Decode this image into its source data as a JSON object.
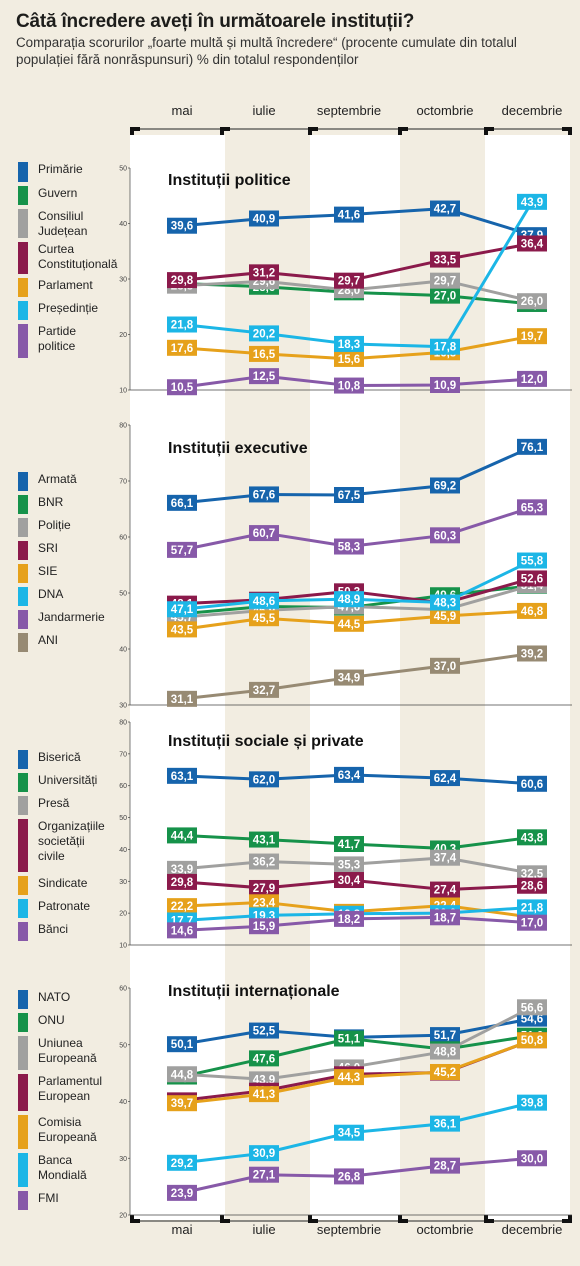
{
  "header": {
    "title": "Câtă încredere aveți în următoarele instituții?",
    "subtitle": "Comparația scorurilor „foarte multă și multă încredere“ (procente cumulate din totalul populației fără nonrăspunsuri)  % din totalul respondenților"
  },
  "colors": {
    "blue": "#1664ac",
    "green": "#16924a",
    "gray": "#a0a09f",
    "maroon": "#8b1a4b",
    "orange": "#e6a11b",
    "cyan": "#1cb6e6",
    "purple": "#8759a8",
    "taupe": "#978a73"
  },
  "chart_data": [
    {
      "type": "line",
      "title": "Instituții politice",
      "categories": [
        "mai",
        "iulie",
        "septembrie",
        "octombrie",
        "decembrie"
      ],
      "ylim": [
        10,
        50
      ],
      "yticks": [
        10,
        20,
        30,
        40,
        50
      ],
      "series": [
        {
          "name": "Primărie",
          "color": "#1664ac",
          "values": [
            39.6,
            40.9,
            41.6,
            42.7,
            37.9
          ]
        },
        {
          "name": "Guvern",
          "color": "#16924a",
          "values": [
            29.2,
            28.6,
            27.6,
            27.0,
            25.5
          ]
        },
        {
          "name": "Consiliul Județean",
          "color": "#a0a09f",
          "values": [
            28.8,
            29.6,
            28.0,
            29.7,
            26.0
          ]
        },
        {
          "name": "Curtea Constituțională",
          "color": "#8b1a4b",
          "values": [
            29.8,
            31.2,
            29.7,
            33.5,
            36.4
          ]
        },
        {
          "name": "Parlament",
          "color": "#e6a11b",
          "values": [
            17.6,
            16.5,
            15.6,
            16.8,
            19.7
          ]
        },
        {
          "name": "Președinție",
          "color": "#1cb6e6",
          "values": [
            21.8,
            20.2,
            18.3,
            17.8,
            43.9
          ]
        },
        {
          "name": "Partide politice",
          "color": "#8759a8",
          "values": [
            10.5,
            12.5,
            10.8,
            10.9,
            12.0
          ]
        }
      ]
    },
    {
      "type": "line",
      "title": "Instituții executive",
      "categories": [
        "mai",
        "iulie",
        "septembrie",
        "octombrie",
        "decembrie"
      ],
      "ylim": [
        30,
        80
      ],
      "yticks": [
        30,
        40,
        50,
        60,
        70,
        80
      ],
      "series": [
        {
          "name": "Armată",
          "color": "#1664ac",
          "values": [
            66.1,
            67.6,
            67.5,
            69.2,
            76.1
          ]
        },
        {
          "name": "BNR",
          "color": "#16924a",
          "values": [
            46.3,
            47.6,
            47.4,
            49.6,
            51.3
          ]
        },
        {
          "name": "Poliție",
          "color": "#a0a09f",
          "values": [
            45.7,
            46.9,
            47.6,
            47.0,
            51.4
          ]
        },
        {
          "name": "SRI",
          "color": "#8b1a4b",
          "values": [
            48.1,
            48.8,
            50.3,
            48.2,
            52.6
          ]
        },
        {
          "name": "SIE",
          "color": "#e6a11b",
          "values": [
            43.5,
            45.5,
            44.5,
            45.9,
            46.8
          ]
        },
        {
          "name": "DNA",
          "color": "#1cb6e6",
          "values": [
            47.1,
            48.6,
            48.9,
            48.3,
            55.8
          ]
        },
        {
          "name": "Jandarmerie",
          "color": "#8759a8",
          "values": [
            57.7,
            60.7,
            58.3,
            60.3,
            65.3
          ]
        },
        {
          "name": "ANI",
          "color": "#978a73",
          "values": [
            31.1,
            32.7,
            34.9,
            37.0,
            39.2
          ]
        }
      ]
    },
    {
      "type": "line",
      "title": "Instituții sociale și private",
      "categories": [
        "mai",
        "iulie",
        "septembrie",
        "octombrie",
        "decembrie"
      ],
      "ylim": [
        10,
        80
      ],
      "yticks": [
        10,
        20,
        30,
        40,
        50,
        60,
        70,
        80
      ],
      "series": [
        {
          "name": "Biserică",
          "color": "#1664ac",
          "values": [
            63.1,
            62.0,
            63.4,
            62.4,
            60.6
          ]
        },
        {
          "name": "Universități",
          "color": "#16924a",
          "values": [
            44.4,
            43.1,
            41.7,
            40.3,
            43.8
          ]
        },
        {
          "name": "Presă",
          "color": "#a0a09f",
          "values": [
            33.9,
            36.2,
            35.3,
            37.4,
            32.5
          ]
        },
        {
          "name": "Organizațiile societății civile",
          "color": "#8b1a4b",
          "values": [
            29.8,
            27.9,
            30.4,
            27.4,
            28.6
          ]
        },
        {
          "name": "Sindicate",
          "color": "#e6a11b",
          "values": [
            22.2,
            23.4,
            20.4,
            22.4,
            18.7
          ]
        },
        {
          "name": "Patronate",
          "color": "#1cb6e6",
          "values": [
            17.7,
            19.3,
            19.8,
            20.0,
            21.8
          ]
        },
        {
          "name": "Bănci",
          "color": "#8759a8",
          "values": [
            14.6,
            15.9,
            18.2,
            18.7,
            17.0
          ]
        }
      ]
    },
    {
      "type": "line",
      "title": "Instituții internaționale",
      "categories": [
        "mai",
        "iulie",
        "septembrie",
        "octombrie",
        "decembrie"
      ],
      "ylim": [
        20,
        60
      ],
      "yticks": [
        20,
        30,
        40,
        50,
        60
      ],
      "series": [
        {
          "name": "NATO",
          "color": "#1664ac",
          "values": [
            50.1,
            52.5,
            51.3,
            51.7,
            54.6
          ]
        },
        {
          "name": "ONU",
          "color": "#16924a",
          "values": [
            44.4,
            47.6,
            51.1,
            49.2,
            51.6
          ]
        },
        {
          "name": "Uniunea Europeană",
          "color": "#a0a09f",
          "values": [
            44.8,
            43.9,
            46.0,
            48.8,
            56.6
          ]
        },
        {
          "name": "Parlamentul European",
          "color": "#8b1a4b",
          "values": [
            40.2,
            41.9,
            44.8,
            45.1,
            50.8
          ]
        },
        {
          "name": "Comisia Europeană",
          "color": "#e6a11b",
          "values": [
            39.7,
            41.3,
            44.3,
            45.2,
            50.8
          ]
        },
        {
          "name": "Banca Mondială",
          "color": "#1cb6e6",
          "values": [
            29.2,
            30.9,
            34.5,
            36.1,
            39.8
          ]
        },
        {
          "name": "FMI",
          "color": "#8759a8",
          "values": [
            23.9,
            27.1,
            26.8,
            28.7,
            30.0
          ]
        }
      ]
    }
  ]
}
